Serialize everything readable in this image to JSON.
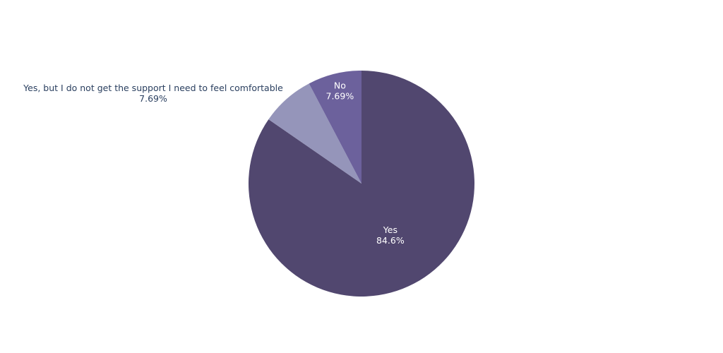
{
  "chart_data": {
    "type": "pie",
    "slices": [
      {
        "label": "Yes",
        "percent_label": "84.6%",
        "value": 84.6,
        "color": "#51476f"
      },
      {
        "label": "Yes, but I do not get the support I need to feel comfortable",
        "percent_label": "7.69%",
        "value": 7.69,
        "color": "#9595ba"
      },
      {
        "label": "No",
        "percent_label": "7.69%",
        "value": 7.69,
        "color": "#6c619c"
      }
    ],
    "direction": "clockwise",
    "start": "top",
    "legend": "none"
  }
}
